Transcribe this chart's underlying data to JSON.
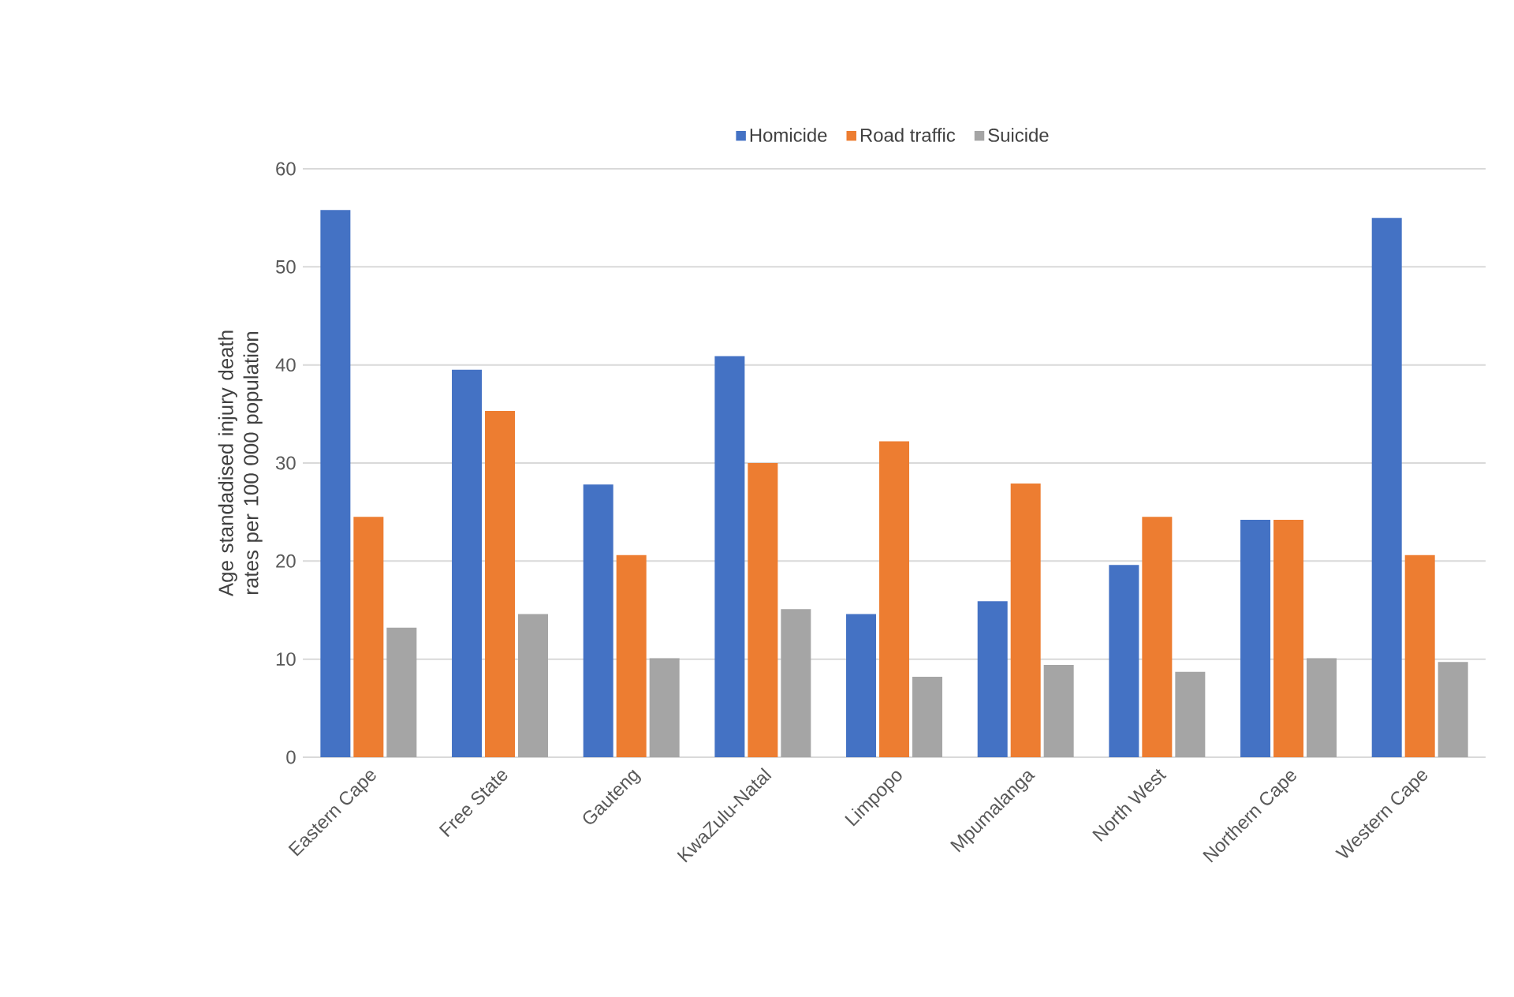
{
  "chart_data": {
    "type": "bar",
    "ylabel": "Age standadised injury death rates per 100 000 population",
    "categories": [
      "Eastern Cape",
      "Free State",
      "Gauteng",
      "KwaZulu-Natal",
      "Limpopo",
      "Mpumalanga",
      "North West",
      "Northern Cape",
      "Western Cape"
    ],
    "series": [
      {
        "name": "Homicide",
        "color": "#4472c4",
        "values": [
          55.8,
          39.5,
          27.8,
          40.9,
          14.6,
          15.9,
          19.6,
          24.2,
          55.0
        ]
      },
      {
        "name": "Road traffic",
        "color": "#ed7d31",
        "values": [
          24.5,
          35.3,
          20.6,
          30.0,
          32.2,
          27.9,
          24.5,
          24.2,
          20.6
        ]
      },
      {
        "name": "Suicide",
        "color": "#a5a5a5",
        "values": [
          13.2,
          14.6,
          10.1,
          15.1,
          8.2,
          9.4,
          8.7,
          10.1,
          9.7
        ]
      }
    ],
    "ylim": [
      0,
      60
    ],
    "yticks": [
      0,
      10,
      20,
      30,
      40,
      50,
      60
    ],
    "grid": "y",
    "legend": "top"
  }
}
